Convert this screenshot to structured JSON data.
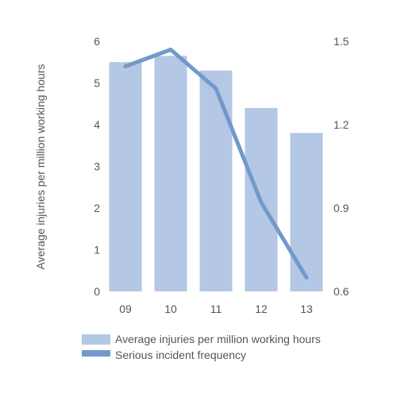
{
  "chart_data": {
    "type": "bar",
    "categories": [
      "09",
      "10",
      "11",
      "12",
      "13"
    ],
    "series": [
      {
        "name": "Average injuries per million working hours",
        "type": "bar",
        "axis": "left",
        "values": [
          5.5,
          5.65,
          5.3,
          4.4,
          3.8
        ],
        "color": "#b4c7e4"
      },
      {
        "name": "Serious incident frequency",
        "type": "line",
        "axis": "right",
        "values": [
          1.41,
          1.47,
          1.33,
          0.92,
          0.65
        ],
        "color": "#7199cc"
      }
    ],
    "ylabel": "Average injuries per million working hours",
    "y_left": {
      "min": 0,
      "max": 6,
      "ticks": [
        0,
        1,
        2,
        3,
        4,
        5,
        6
      ]
    },
    "y_right": {
      "min": 0.6,
      "max": 1.5,
      "ticks": [
        "0.6",
        "0.9",
        "1.2",
        "1.5"
      ]
    },
    "grid": false,
    "legend_position": "bottom-left"
  }
}
